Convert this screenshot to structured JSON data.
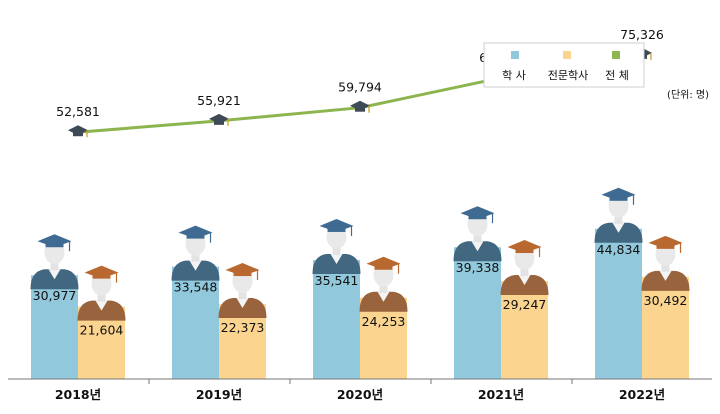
{
  "chart_data": {
    "type": "bar",
    "unit_note": "(단위: 명)",
    "categories": [
      "2018년",
      "2019년",
      "2020년",
      "2021년",
      "2022년"
    ],
    "series": [
      {
        "name": "학 사",
        "kind": "bar",
        "color": "#92C8DC",
        "values": [
          30977,
          33548,
          35541,
          39338,
          44834
        ],
        "labels": [
          "30,977",
          "33,548",
          "35,541",
          "39,338",
          "44,834"
        ]
      },
      {
        "name": "전문학사",
        "kind": "bar",
        "color": "#FBD58F",
        "values": [
          21604,
          22373,
          24253,
          29247,
          30492
        ],
        "labels": [
          "21,604",
          "22,373",
          "24,253",
          "29,247",
          "30,492"
        ]
      },
      {
        "name": "전 체",
        "kind": "line",
        "color": "#8DB54F",
        "values": [
          52581,
          55921,
          59794,
          68585,
          75326
        ],
        "labels": [
          "52,581",
          "55,921",
          "59,794",
          "68,585",
          "75,326"
        ]
      }
    ],
    "legend_position": "top-right",
    "grid": false
  }
}
